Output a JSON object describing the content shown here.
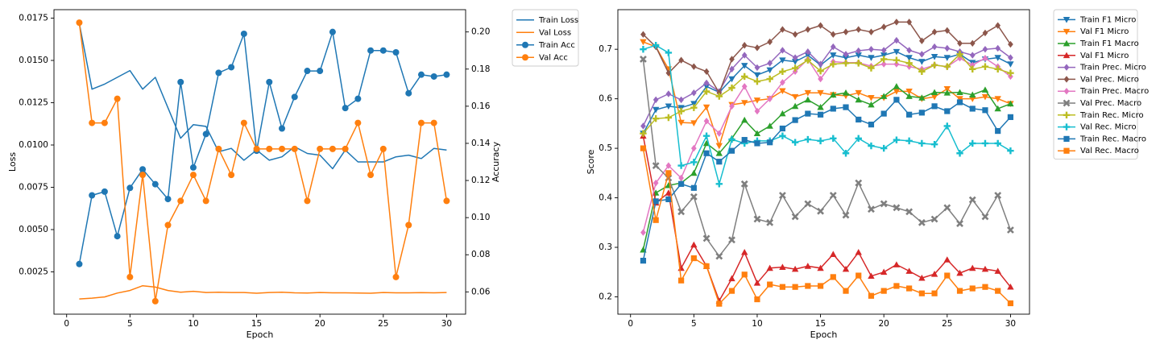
{
  "chart_data": [
    {
      "type": "line",
      "xlabel": "Epoch",
      "ylabel": "Loss",
      "y2label": "Accuracy",
      "xlim": [
        -1,
        31.5
      ],
      "ylim": [
        0.0,
        0.018
      ],
      "y2lim": [
        0.048,
        0.212
      ],
      "xticks": [
        "0",
        "5",
        "10",
        "15",
        "20",
        "25",
        "30"
      ],
      "yticks": [
        "0.0025",
        "0.0050",
        "0.0075",
        "0.0100",
        "0.0125",
        "0.0150",
        "0.0175"
      ],
      "y2ticks": [
        "0.06",
        "0.08",
        "0.10",
        "0.12",
        "0.14",
        "0.16",
        "0.18",
        "0.20"
      ],
      "legend_position": "outside-top-right",
      "x": [
        1,
        2,
        3,
        4,
        5,
        6,
        7,
        8,
        9,
        10,
        11,
        12,
        13,
        14,
        15,
        16,
        17,
        18,
        19,
        20,
        21,
        22,
        23,
        24,
        25,
        26,
        27,
        28,
        29,
        30
      ],
      "series": [
        {
          "name": "Train Loss",
          "axis": "left",
          "color": "#1f77b4",
          "marker": "none",
          "values": [
            0.0172,
            0.0133,
            0.0136,
            0.014,
            0.0144,
            0.0133,
            0.014,
            0.0122,
            0.0104,
            0.0112,
            0.0111,
            0.0096,
            0.0098,
            0.0091,
            0.0097,
            0.0091,
            0.0093,
            0.0099,
            0.0095,
            0.0094,
            0.0086,
            0.0097,
            0.009,
            0.009,
            0.009,
            0.0093,
            0.0094,
            0.0092,
            0.0098,
            0.0097
          ]
        },
        {
          "name": "Val Loss",
          "axis": "left",
          "color": "#ff7f0e",
          "marker": "none",
          "values": [
            0.0009,
            0.00095,
            0.00102,
            0.00125,
            0.0014,
            0.00168,
            0.0016,
            0.0014,
            0.0013,
            0.00135,
            0.00128,
            0.0013,
            0.00128,
            0.00128,
            0.00124,
            0.00128,
            0.0013,
            0.00126,
            0.00125,
            0.00128,
            0.00126,
            0.00126,
            0.00125,
            0.00124,
            0.00128,
            0.00126,
            0.00126,
            0.00127,
            0.00126,
            0.00128
          ]
        },
        {
          "name": "Train Acc",
          "axis": "right",
          "color": "#1f77b4",
          "marker": "circle",
          "values": [
            0.075,
            0.112,
            0.114,
            0.09,
            0.116,
            0.126,
            0.118,
            0.11,
            0.173,
            0.127,
            0.145,
            0.178,
            0.181,
            0.199,
            0.136,
            0.173,
            0.148,
            0.165,
            0.179,
            0.179,
            0.2,
            0.159,
            0.164,
            0.19,
            0.19,
            0.189,
            0.167,
            0.177,
            0.176,
            0.177
          ]
        },
        {
          "name": "Val Acc",
          "axis": "right",
          "color": "#ff7f0e",
          "marker": "circle",
          "values": [
            0.205,
            0.151,
            0.151,
            0.164,
            0.068,
            0.123,
            0.055,
            0.096,
            0.109,
            0.123,
            0.109,
            0.137,
            0.123,
            0.151,
            0.137,
            0.137,
            0.137,
            0.137,
            0.109,
            0.137,
            0.137,
            0.137,
            0.151,
            0.123,
            0.137,
            0.068,
            0.096,
            0.151,
            0.151,
            0.109
          ]
        }
      ]
    },
    {
      "type": "line",
      "xlabel": "Epoch",
      "ylabel": "Score",
      "xlim": [
        -1,
        31.5
      ],
      "ylim": [
        0.165,
        0.78
      ],
      "xticks": [
        "0",
        "5",
        "10",
        "15",
        "20",
        "25",
        "30"
      ],
      "yticks": [
        "0.2",
        "0.3",
        "0.4",
        "0.5",
        "0.6",
        "0.7"
      ],
      "legend_position": "outside-top-right",
      "x": [
        1,
        2,
        3,
        4,
        5,
        6,
        7,
        8,
        9,
        10,
        11,
        12,
        13,
        14,
        15,
        16,
        17,
        18,
        19,
        20,
        21,
        22,
        23,
        24,
        25,
        26,
        27,
        28,
        29,
        30
      ],
      "series": [
        {
          "name": "Train F1 Micro",
          "color": "#1f77b4",
          "marker": "triangle-down",
          "values": [
            0.53,
            0.578,
            0.585,
            0.582,
            0.59,
            0.625,
            0.613,
            0.64,
            0.667,
            0.648,
            0.658,
            0.678,
            0.675,
            0.688,
            0.668,
            0.688,
            0.683,
            0.688,
            0.683,
            0.688,
            0.695,
            0.683,
            0.675,
            0.685,
            0.683,
            0.69,
            0.673,
            0.68,
            0.683,
            0.67
          ]
        },
        {
          "name": "Val F1 Micro",
          "color": "#ff7f0e",
          "marker": "triangle-down",
          "values": [
            0.715,
            0.705,
            0.66,
            0.552,
            0.551,
            0.583,
            0.505,
            0.588,
            0.592,
            0.597,
            0.6,
            0.616,
            0.604,
            0.612,
            0.612,
            0.608,
            0.606,
            0.612,
            0.602,
            0.602,
            0.615,
            0.615,
            0.6,
            0.604,
            0.62,
            0.6,
            0.6,
            0.604,
            0.6,
            0.59
          ]
        },
        {
          "name": "Train F1 Macro",
          "color": "#2ca02c",
          "marker": "triangle-up",
          "values": [
            0.295,
            0.41,
            0.425,
            0.43,
            0.45,
            0.51,
            0.49,
            0.52,
            0.557,
            0.53,
            0.545,
            0.57,
            0.585,
            0.598,
            0.583,
            0.608,
            0.612,
            0.598,
            0.588,
            0.605,
            0.625,
            0.605,
            0.602,
            0.613,
            0.612,
            0.613,
            0.608,
            0.618,
            0.58,
            0.59
          ]
        },
        {
          "name": "Val F1 Micro",
          "color": "#d62728",
          "marker": "triangle-up",
          "values": [
            0.525,
            0.39,
            0.41,
            0.258,
            0.305,
            0.262,
            0.192,
            0.237,
            0.29,
            0.228,
            0.258,
            0.26,
            0.256,
            0.262,
            0.258,
            0.286,
            0.256,
            0.29,
            0.242,
            0.25,
            0.265,
            0.252,
            0.238,
            0.246,
            0.275,
            0.248,
            0.258,
            0.256,
            0.252,
            0.22
          ]
        },
        {
          "name": "Train Prec. Micro",
          "color": "#9467bd",
          "marker": "diamond",
          "values": [
            0.545,
            0.598,
            0.61,
            0.598,
            0.612,
            0.632,
            0.615,
            0.66,
            0.688,
            0.663,
            0.672,
            0.698,
            0.683,
            0.695,
            0.67,
            0.705,
            0.69,
            0.697,
            0.7,
            0.698,
            0.718,
            0.698,
            0.69,
            0.705,
            0.702,
            0.695,
            0.688,
            0.7,
            0.702,
            0.683
          ]
        },
        {
          "name": "Val Prec. Micro",
          "color": "#8c564b",
          "marker": "diamond",
          "values": [
            0.73,
            0.705,
            0.652,
            0.678,
            0.665,
            0.655,
            0.612,
            0.68,
            0.708,
            0.703,
            0.715,
            0.74,
            0.73,
            0.74,
            0.748,
            0.73,
            0.735,
            0.74,
            0.735,
            0.745,
            0.755,
            0.755,
            0.717,
            0.735,
            0.738,
            0.712,
            0.712,
            0.733,
            0.748,
            0.71
          ]
        },
        {
          "name": "Train Prec. Macro",
          "color": "#e377c2",
          "marker": "diamond",
          "values": [
            0.33,
            0.43,
            0.465,
            0.44,
            0.5,
            0.555,
            0.53,
            0.585,
            0.625,
            0.575,
            0.6,
            0.633,
            0.655,
            0.68,
            0.64,
            0.675,
            0.673,
            0.673,
            0.666,
            0.67,
            0.67,
            0.665,
            0.66,
            0.668,
            0.665,
            0.682,
            0.668,
            0.682,
            0.665,
            0.645
          ]
        },
        {
          "name": "Val Prec. Macro",
          "color": "#7f7f7f",
          "marker": "x",
          "values": [
            0.68,
            0.465,
            0.44,
            0.372,
            0.402,
            0.318,
            0.282,
            0.315,
            0.428,
            0.357,
            0.35,
            0.405,
            0.362,
            0.388,
            0.373,
            0.405,
            0.365,
            0.43,
            0.377,
            0.388,
            0.38,
            0.372,
            0.35,
            0.357,
            0.38,
            0.348,
            0.396,
            0.362,
            0.405,
            0.335
          ]
        },
        {
          "name": "Train Rec. Micro",
          "color": "#bcbd22",
          "marker": "plus",
          "values": [
            0.53,
            0.56,
            0.562,
            0.575,
            0.582,
            0.615,
            0.605,
            0.622,
            0.645,
            0.635,
            0.64,
            0.655,
            0.662,
            0.678,
            0.656,
            0.67,
            0.672,
            0.672,
            0.662,
            0.68,
            0.678,
            0.672,
            0.655,
            0.668,
            0.665,
            0.69,
            0.66,
            0.665,
            0.66,
            0.652
          ]
        },
        {
          "name": "Val Rec. Micro",
          "color": "#17becf",
          "marker": "plus",
          "values": [
            0.7,
            0.708,
            0.693,
            0.465,
            0.472,
            0.525,
            0.428,
            0.518,
            0.51,
            0.515,
            0.515,
            0.525,
            0.512,
            0.518,
            0.515,
            0.52,
            0.49,
            0.52,
            0.505,
            0.5,
            0.517,
            0.515,
            0.51,
            0.508,
            0.545,
            0.49,
            0.51,
            0.51,
            0.51,
            0.495
          ]
        },
        {
          "name": "Train Rec. Macro",
          "color": "#1f77b4",
          "marker": "square",
          "values": [
            0.273,
            0.393,
            0.397,
            0.428,
            0.42,
            0.49,
            0.473,
            0.495,
            0.517,
            0.51,
            0.512,
            0.54,
            0.557,
            0.57,
            0.568,
            0.58,
            0.583,
            0.558,
            0.548,
            0.57,
            0.598,
            0.568,
            0.572,
            0.585,
            0.575,
            0.593,
            0.58,
            0.577,
            0.535,
            0.563
          ]
        },
        {
          "name": "Val Rec. Macro",
          "color": "#ff7f0e",
          "marker": "square",
          "values": [
            0.5,
            0.355,
            0.45,
            0.233,
            0.278,
            0.262,
            0.186,
            0.212,
            0.245,
            0.195,
            0.225,
            0.22,
            0.22,
            0.222,
            0.222,
            0.24,
            0.212,
            0.243,
            0.202,
            0.212,
            0.222,
            0.217,
            0.207,
            0.207,
            0.243,
            0.212,
            0.217,
            0.22,
            0.212,
            0.187
          ]
        }
      ]
    }
  ]
}
